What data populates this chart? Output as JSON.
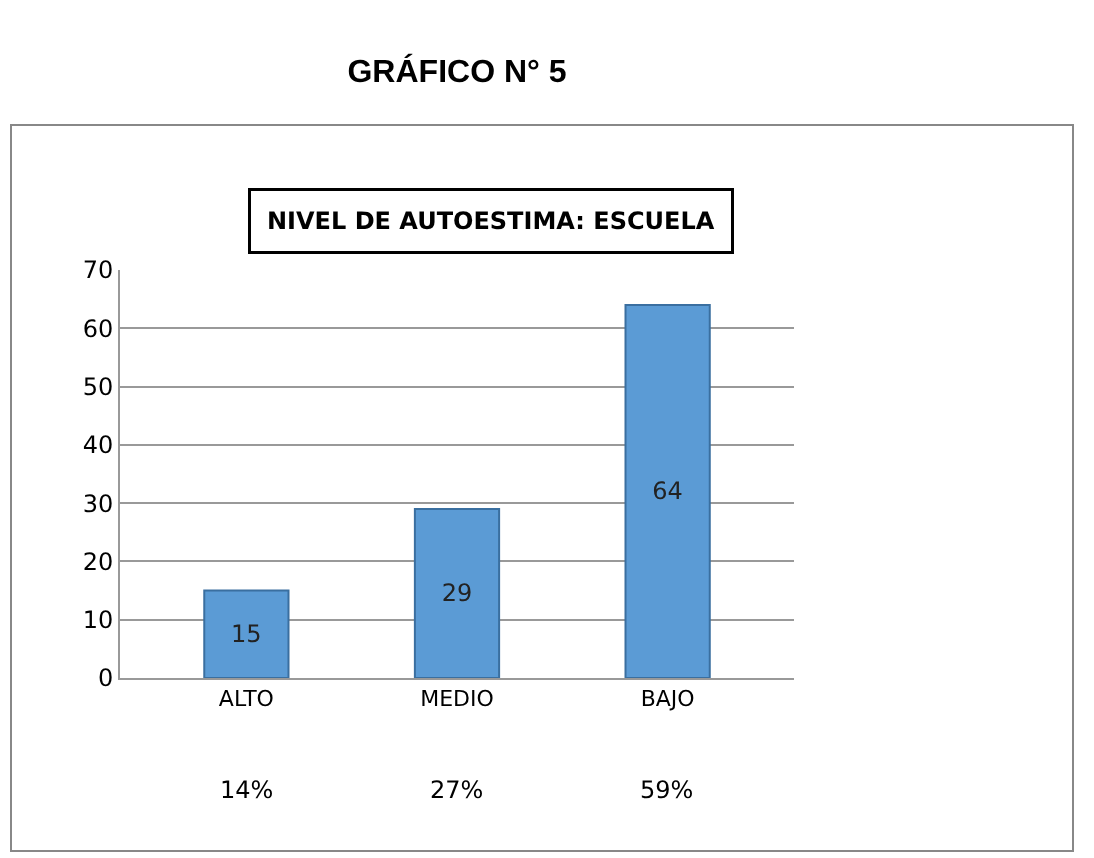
{
  "chart_data": {
    "type": "bar",
    "title": "GRÁFICO N° 5",
    "subtitle": "NIVEL DE AUTOESTIMA: ESCUELA",
    "categories": [
      "ALTO",
      "MEDIO",
      "BAJO"
    ],
    "values": [
      15,
      29,
      64
    ],
    "color": "#5b9bd5",
    "ylim": [
      0,
      70
    ],
    "yticks": [
      0,
      10,
      20,
      30,
      40,
      50,
      60,
      70
    ],
    "grid": "y",
    "data_labels": true,
    "annotations": [
      "14%",
      "27%",
      "59%"
    ]
  }
}
